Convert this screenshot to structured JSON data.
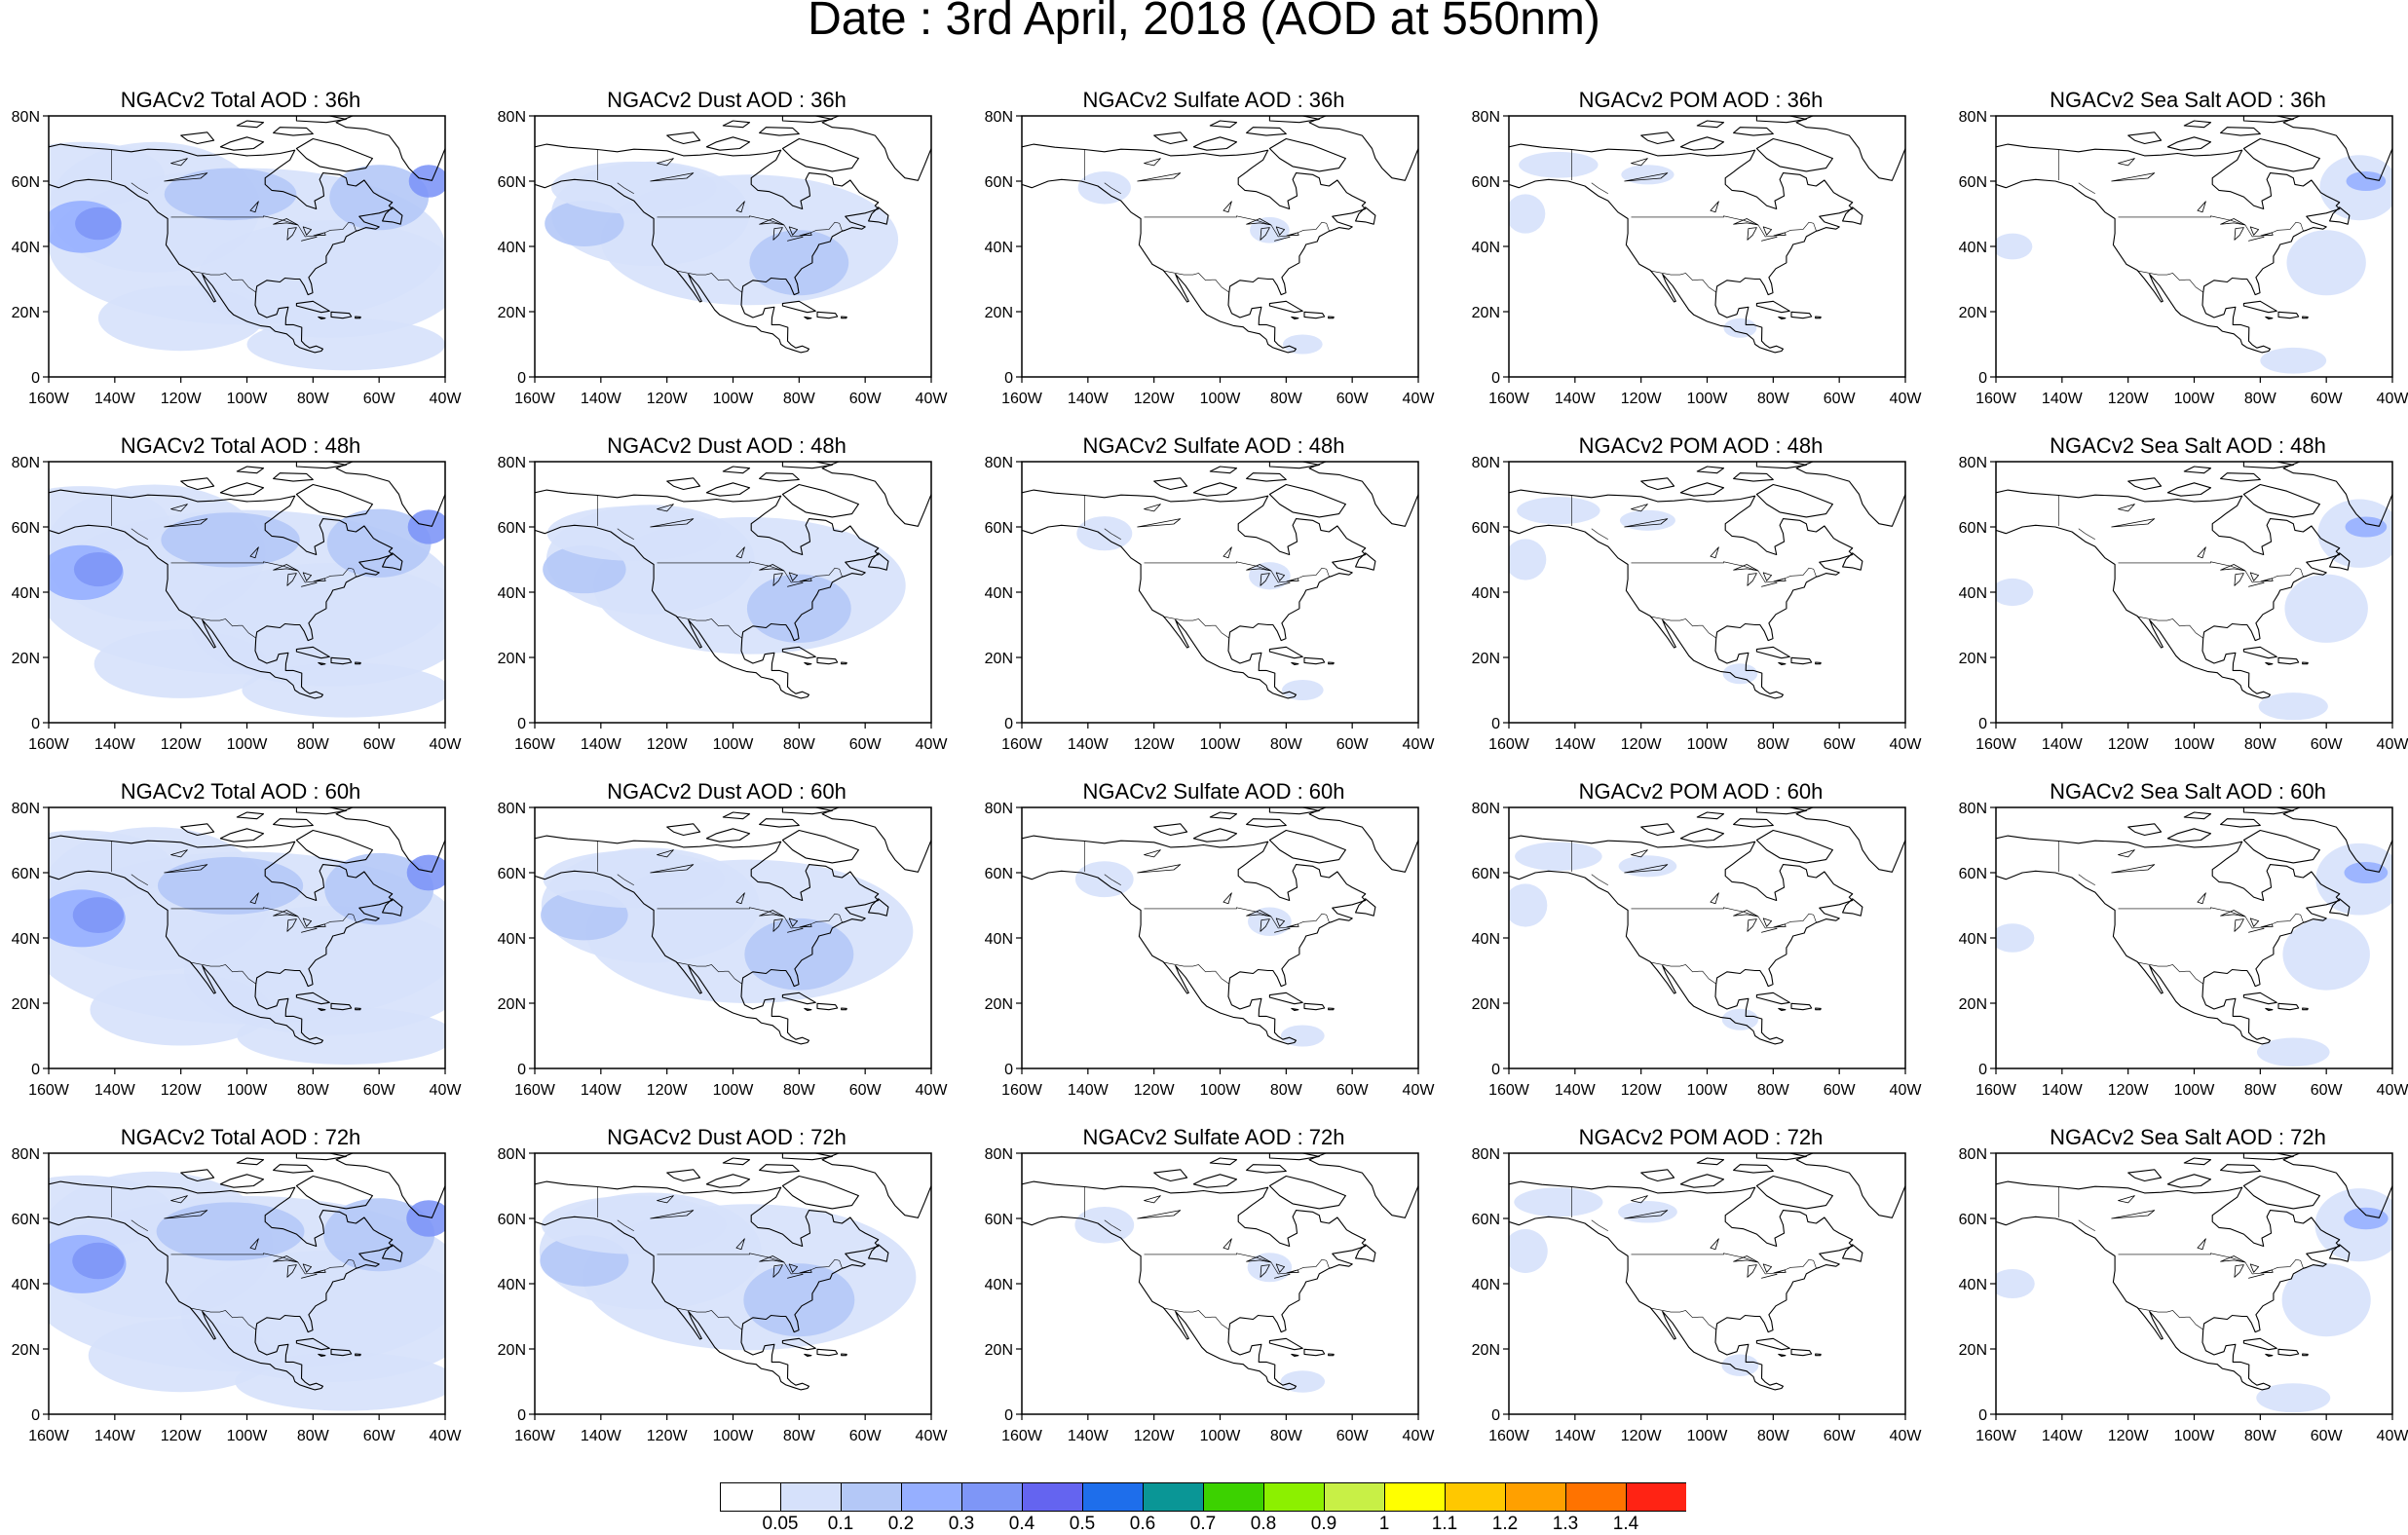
{
  "title": "Date : 3rd April, 2018 (AOD at 550nm)",
  "axes": {
    "lat_labels": [
      "80N",
      "60N",
      "40N",
      "20N",
      "0"
    ],
    "lon_labels": [
      "160W",
      "140W",
      "120W",
      "100W",
      "80W",
      "60W",
      "40W"
    ]
  },
  "panels": [
    {
      "title": "NGACv2 Total AOD : 36h",
      "species": "total",
      "forecast_hour": 36
    },
    {
      "title": "NGACv2 Dust AOD : 36h",
      "species": "dust",
      "forecast_hour": 36
    },
    {
      "title": "NGACv2 Sulfate AOD : 36h",
      "species": "sulfate",
      "forecast_hour": 36
    },
    {
      "title": "NGACv2 POM AOD : 36h",
      "species": "pom",
      "forecast_hour": 36
    },
    {
      "title": "NGACv2 Sea Salt AOD : 36h",
      "species": "seasalt",
      "forecast_hour": 36
    },
    {
      "title": "NGACv2 Total AOD : 48h",
      "species": "total",
      "forecast_hour": 48
    },
    {
      "title": "NGACv2 Dust AOD : 48h",
      "species": "dust",
      "forecast_hour": 48
    },
    {
      "title": "NGACv2 Sulfate AOD : 48h",
      "species": "sulfate",
      "forecast_hour": 48
    },
    {
      "title": "NGACv2 POM AOD : 48h",
      "species": "pom",
      "forecast_hour": 48
    },
    {
      "title": "NGACv2 Sea Salt AOD : 48h",
      "species": "seasalt",
      "forecast_hour": 48
    },
    {
      "title": "NGACv2 Total AOD : 60h",
      "species": "total",
      "forecast_hour": 60
    },
    {
      "title": "NGACv2 Dust AOD : 60h",
      "species": "dust",
      "forecast_hour": 60
    },
    {
      "title": "NGACv2 Sulfate AOD : 60h",
      "species": "sulfate",
      "forecast_hour": 60
    },
    {
      "title": "NGACv2 POM AOD : 60h",
      "species": "pom",
      "forecast_hour": 60
    },
    {
      "title": "NGACv2 Sea Salt AOD : 60h",
      "species": "seasalt",
      "forecast_hour": 60
    },
    {
      "title": "NGACv2 Total AOD : 72h",
      "species": "total",
      "forecast_hour": 72
    },
    {
      "title": "NGACv2 Dust AOD : 72h",
      "species": "dust",
      "forecast_hour": 72
    },
    {
      "title": "NGACv2 Sulfate AOD : 72h",
      "species": "sulfate",
      "forecast_hour": 72
    },
    {
      "title": "NGACv2 POM AOD : 72h",
      "species": "pom",
      "forecast_hour": 72
    },
    {
      "title": "NGACv2 Sea Salt  AOD : 72h",
      "species": "seasalt",
      "forecast_hour": 72
    }
  ],
  "colorbar": {
    "labels": [
      "0.05",
      "0.1",
      "0.2",
      "0.3",
      "0.4",
      "0.5",
      "0.6",
      "0.7",
      "0.8",
      "0.9",
      "1",
      "1.1",
      "1.2",
      "1.3",
      "1.4"
    ],
    "colors": [
      "#ffffff",
      "#d6e1fb",
      "#b4c8f7",
      "#96afff",
      "#7e96f7",
      "#6464f0",
      "#1e6eeb",
      "#0a9696",
      "#3cd200",
      "#8cf000",
      "#c8f046",
      "#ffff00",
      "#ffc800",
      "#ffa000",
      "#ff7300",
      "#ff2314"
    ]
  }
}
